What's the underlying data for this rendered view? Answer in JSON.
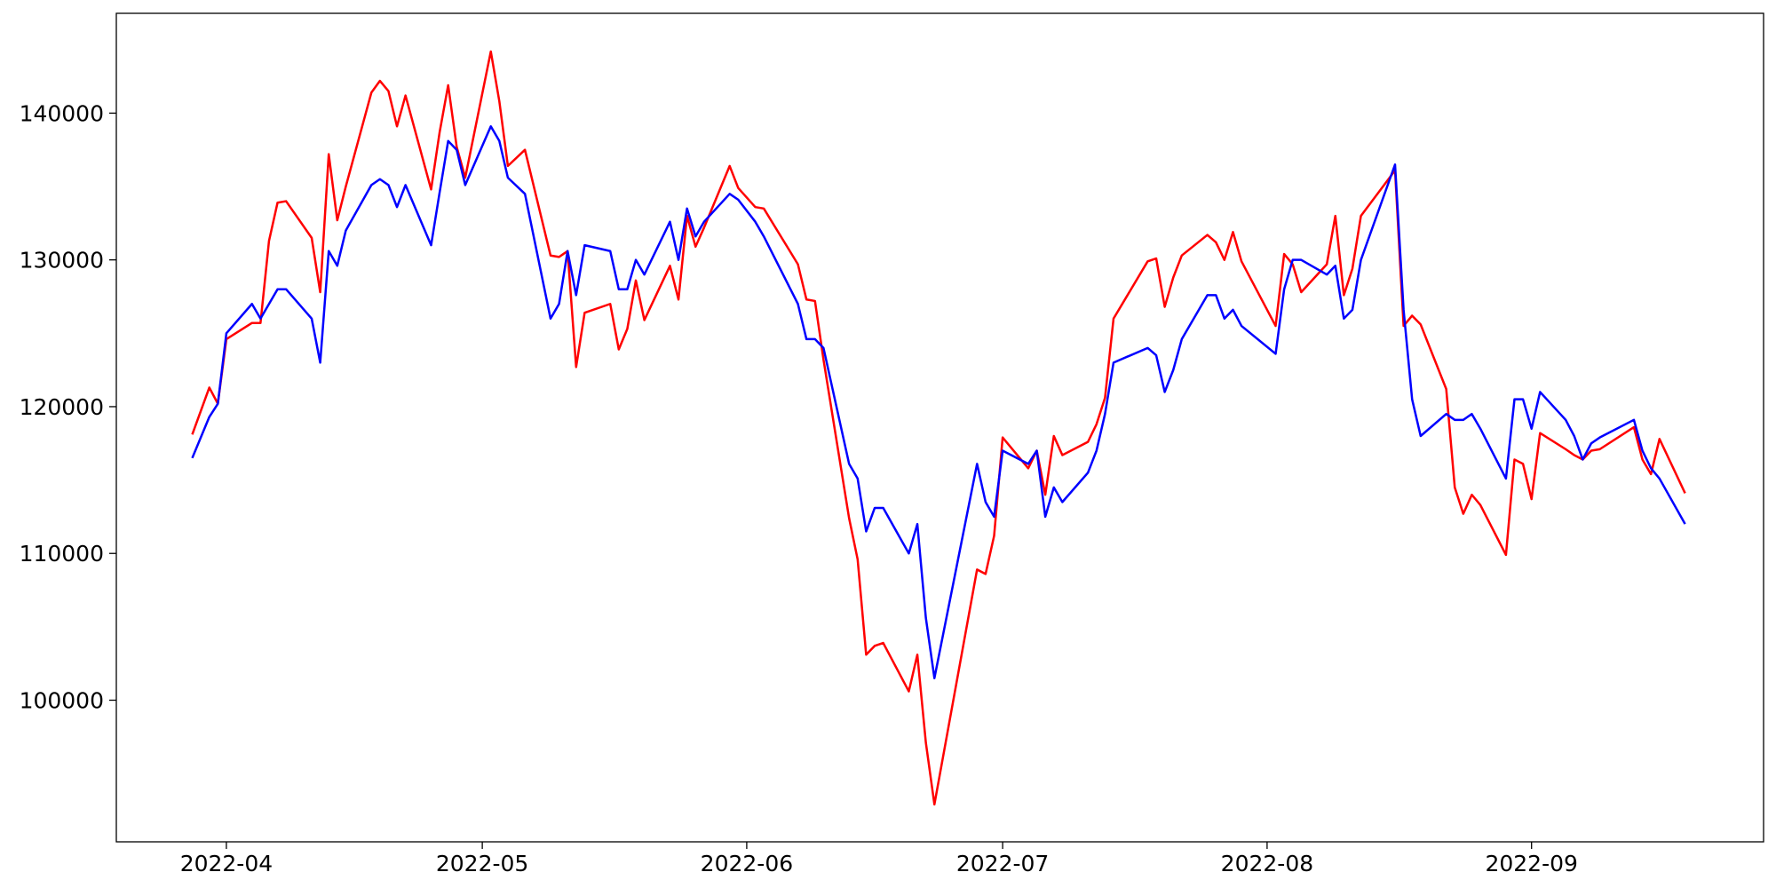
{
  "chart_data": {
    "type": "line",
    "x": [
      87,
      89,
      90,
      91,
      94,
      95,
      96,
      97,
      98,
      101,
      102,
      103,
      104,
      105,
      108,
      109,
      110,
      111,
      112,
      115,
      116,
      117,
      118,
      119,
      122,
      123,
      124,
      126,
      129,
      130,
      131,
      132,
      133,
      136,
      137,
      138,
      139,
      140,
      143,
      144,
      145,
      146,
      147,
      150,
      151,
      153,
      154,
      158,
      159,
      160,
      161,
      164,
      165,
      166,
      167,
      168,
      171,
      172,
      173,
      174,
      179,
      180,
      181,
      182,
      185,
      186,
      187,
      188,
      189,
      192,
      193,
      194,
      195,
      199,
      200,
      201,
      202,
      203,
      206,
      207,
      208,
      209,
      210,
      214,
      215,
      216,
      217,
      220,
      221,
      222,
      223,
      224,
      228,
      229,
      230,
      231,
      234,
      235,
      236,
      237,
      238,
      241,
      242,
      243,
      244,
      245,
      248,
      249,
      250,
      251,
      252,
      256,
      257,
      258,
      259,
      262
    ],
    "series": [
      {
        "color": "#ff0000",
        "values": [
          118100,
          121300,
          120200,
          124600,
          125700,
          125700,
          131300,
          133900,
          134000,
          131500,
          127800,
          137200,
          132700,
          135000,
          141400,
          142200,
          141500,
          139100,
          141200,
          134800,
          138700,
          141900,
          137700,
          135600,
          144200,
          140800,
          136400,
          137500,
          130300,
          130200,
          130600,
          122700,
          126400,
          127000,
          123900,
          125300,
          128600,
          125900,
          129600,
          127300,
          133000,
          130900,
          132200,
          136400,
          134900,
          133600,
          133500,
          129700,
          127300,
          127200,
          123200,
          112400,
          109600,
          103100,
          103700,
          103900,
          100600,
          103100,
          97100,
          92900,
          108900,
          108600,
          111200,
          117900,
          115800,
          117000,
          114000,
          118000,
          116700,
          117600,
          118800,
          120600,
          126000,
          129900,
          130100,
          126800,
          128800,
          130300,
          131700,
          131200,
          130000,
          131900,
          129900,
          125500,
          130400,
          129700,
          127800,
          129700,
          133000,
          127600,
          129400,
          133000,
          136100,
          125500,
          126200,
          125600,
          121200,
          114500,
          112700,
          114000,
          113300,
          109900,
          116400,
          116100,
          113700,
          118200,
          117100,
          116700,
          116400,
          117000,
          117100,
          118600,
          116400,
          115400,
          117800,
          114100
        ]
      },
      {
        "color": "#0000ff",
        "values": [
          116500,
          119300,
          120200,
          125000,
          127000,
          126000,
          127000,
          128000,
          128000,
          126000,
          123000,
          130600,
          129600,
          132000,
          135100,
          135500,
          135100,
          133600,
          135100,
          131000,
          134600,
          138100,
          137500,
          135100,
          139100,
          138100,
          135600,
          134500,
          126000,
          127000,
          130600,
          127600,
          131000,
          130600,
          128000,
          128000,
          130000,
          129000,
          132600,
          130000,
          133500,
          131600,
          132600,
          134500,
          134100,
          132600,
          131600,
          127000,
          124600,
          124600,
          124000,
          116100,
          115100,
          111500,
          113100,
          113100,
          110000,
          112000,
          105600,
          101500,
          116100,
          113500,
          112500,
          117000,
          116100,
          117000,
          112500,
          114500,
          113500,
          115500,
          117000,
          119500,
          123000,
          124000,
          123500,
          121000,
          122500,
          124600,
          127600,
          127600,
          126000,
          126600,
          125500,
          123600,
          128000,
          130000,
          130000,
          129000,
          129600,
          126000,
          126600,
          130000,
          136500,
          126600,
          120500,
          118000,
          119500,
          119100,
          119100,
          119500,
          118500,
          115100,
          120500,
          120500,
          118500,
          121000,
          119100,
          118000,
          116400,
          117500,
          117900,
          119100,
          117000,
          115800,
          115100,
          112000
        ]
      }
    ],
    "xlim": [
      78.1,
      271.2
    ],
    "xticks": [
      {
        "value": 91,
        "label": "2022-04"
      },
      {
        "value": 121,
        "label": "2022-05"
      },
      {
        "value": 152,
        "label": "2022-06"
      },
      {
        "value": 182,
        "label": "2022-07"
      },
      {
        "value": 213,
        "label": "2022-08"
      },
      {
        "value": 244,
        "label": "2022-09"
      }
    ],
    "ylim": [
      90350,
      146800
    ],
    "yticks": [
      100000,
      110000,
      120000,
      130000,
      140000
    ],
    "grid": false
  }
}
